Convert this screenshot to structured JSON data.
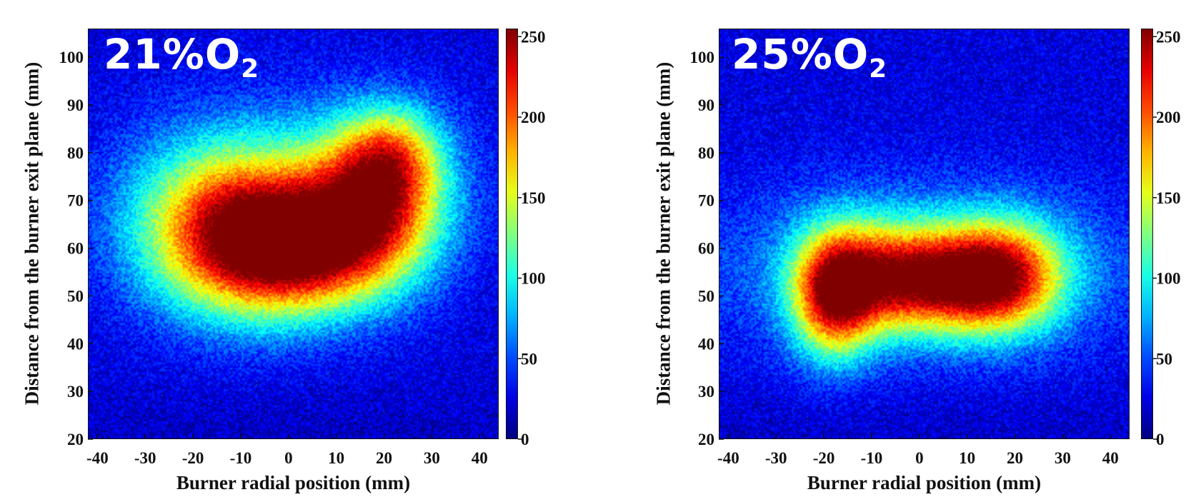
{
  "chart_data": [
    {
      "type": "heatmap",
      "panel_label": {
        "main": "21%O",
        "sub": "2"
      },
      "xlabel": "Burner radial position (mm)",
      "ylabel": "Distance from the burner exit plane (mm)",
      "xlim": [
        -42,
        44
      ],
      "ylim": [
        20,
        106
      ],
      "xticks": [
        -40,
        -30,
        -20,
        -10,
        0,
        10,
        20,
        30,
        40
      ],
      "yticks": [
        20,
        30,
        40,
        50,
        60,
        70,
        80,
        90,
        100
      ],
      "colorbar": {
        "min": 0,
        "max": 255,
        "ticks": [
          0,
          50,
          100,
          150,
          200,
          250
        ],
        "colormap": "jet"
      },
      "background_level": 22,
      "intensity_blobs": [
        {
          "x": -11,
          "y": 64,
          "sx": 14,
          "sy": 12,
          "value": 190
        },
        {
          "x": 18,
          "y": 70,
          "sx": 10,
          "sy": 11,
          "value": 175
        },
        {
          "x": 3,
          "y": 59,
          "sx": 13,
          "sy": 9,
          "value": 140
        },
        {
          "x": 22,
          "y": 80,
          "sx": 7,
          "sy": 7,
          "value": 80
        },
        {
          "x": 0,
          "y": 72,
          "sx": 26,
          "sy": 16,
          "value": 30
        }
      ]
    },
    {
      "type": "heatmap",
      "panel_label": {
        "main": "25%O",
        "sub": "2"
      },
      "xlabel": "Burner radial position (mm)",
      "ylabel": "Distance from the burner exit plane (mm)",
      "xlim": [
        -42,
        44
      ],
      "ylim": [
        20,
        106
      ],
      "xticks": [
        -40,
        -30,
        -20,
        -10,
        0,
        10,
        20,
        30,
        40
      ],
      "yticks": [
        20,
        30,
        40,
        50,
        60,
        70,
        80,
        90,
        100
      ],
      "colorbar": {
        "min": 0,
        "max": 255,
        "ticks": [
          0,
          50,
          100,
          150,
          200,
          250
        ],
        "colormap": "jet"
      },
      "background_level": 24,
      "intensity_blobs": [
        {
          "x": -18,
          "y": 50,
          "sx": 6,
          "sy": 9,
          "value": 175
        },
        {
          "x": 17,
          "y": 54,
          "sx": 9,
          "sy": 8,
          "value": 185
        },
        {
          "x": -8,
          "y": 54,
          "sx": 9,
          "sy": 8,
          "value": 120
        },
        {
          "x": 4,
          "y": 53,
          "sx": 9,
          "sy": 7,
          "value": 105
        },
        {
          "x": 0,
          "y": 56,
          "sx": 32,
          "sy": 12,
          "value": 55
        }
      ]
    }
  ]
}
